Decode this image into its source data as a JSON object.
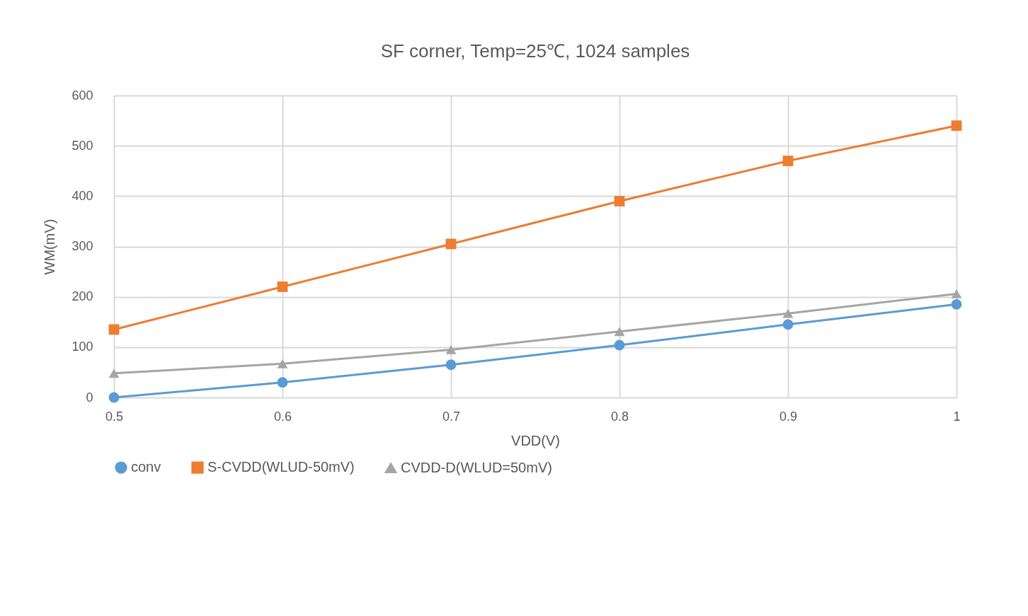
{
  "chart_data": {
    "type": "line",
    "title": "SF corner, Temp=25℃, 1024 samples",
    "xlabel": "VDD(V)",
    "ylabel": "WM(mV)",
    "x": [
      0.5,
      0.6,
      0.7,
      0.8,
      0.9,
      1
    ],
    "series": [
      {
        "name": "conv",
        "color": "#5b9bd5",
        "marker": "circle",
        "values": [
          0,
          30,
          65,
          104,
          145,
          185
        ]
      },
      {
        "name": "S-CVDD(WLUD-50mV)",
        "color": "#ed7d31",
        "marker": "square",
        "values": [
          135,
          220,
          305,
          390,
          470,
          540
        ]
      },
      {
        "name": "CVDD-D(WLUD=50mV)",
        "color": "#a5a5a5",
        "marker": "triangle",
        "values": [
          48,
          67,
          95,
          131,
          167,
          206
        ]
      }
    ],
    "xlim": [
      0.5,
      1
    ],
    "xticks": [
      0.5,
      0.6,
      0.7,
      0.8,
      0.9,
      1
    ],
    "ylim": [
      0,
      600
    ],
    "yticks": [
      0,
      100,
      200,
      300,
      400,
      500,
      600
    ],
    "grid": true,
    "legend": "bottom",
    "line_style": "solid"
  }
}
